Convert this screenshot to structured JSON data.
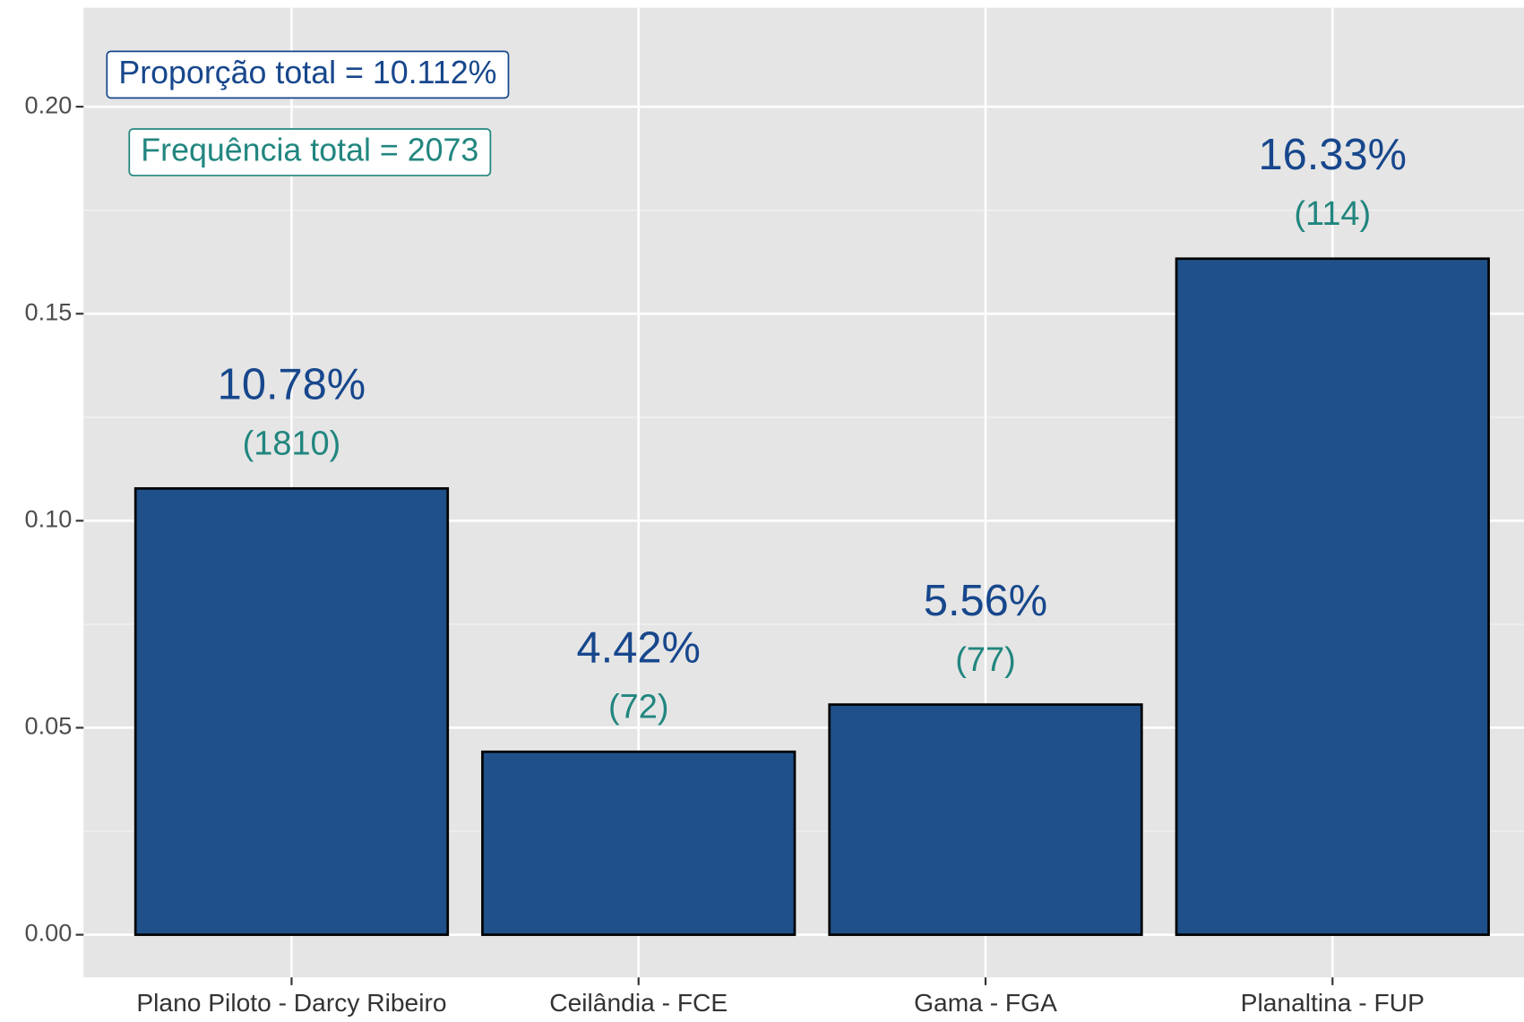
{
  "chart_data": {
    "type": "bar",
    "categories": [
      "Plano Piloto - Darcy Ribeiro",
      "Ceilândia - FCE",
      "Gama - FGA",
      "Planaltina - FUP"
    ],
    "values": [
      0.1078,
      0.0442,
      0.0556,
      0.1633
    ],
    "value_labels": [
      "10.78%",
      "4.42%",
      "5.56%",
      "16.33%"
    ],
    "counts": [
      1810,
      72,
      77,
      114
    ],
    "count_labels": [
      "(1810)",
      "(72)",
      "(77)",
      "(114)"
    ],
    "color": "#1f5089",
    "value_label_color": "#17478c",
    "count_label_color": "#21867f",
    "annotations": [
      "Proporção total = 10.112%",
      "Frequência total = 2073"
    ],
    "ylim": [
      -0.0103,
      0.2239
    ],
    "yticks": [
      {
        "value": 0,
        "label": "0.00"
      },
      {
        "value": 0.05,
        "label": "0.05"
      },
      {
        "value": 0.1,
        "label": "0.10"
      },
      {
        "value": 0.15,
        "label": "0.15"
      },
      {
        "value": 0.2,
        "label": "0.20"
      }
    ],
    "yminor": [
      0.025,
      0.075,
      0.125,
      0.175
    ],
    "grid": true
  }
}
